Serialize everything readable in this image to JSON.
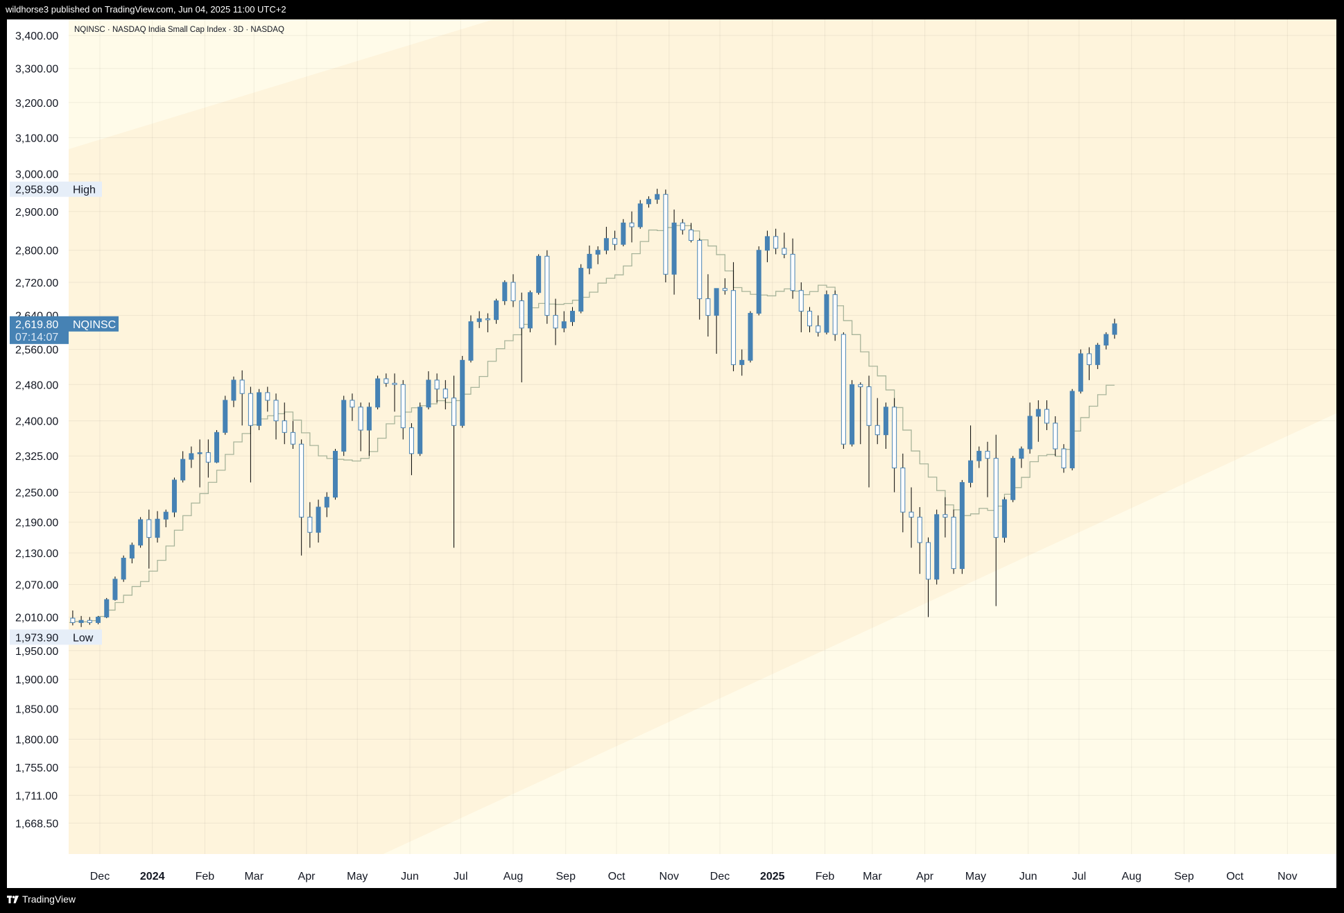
{
  "header": {
    "published": "wildhorse3 published on TradingView.com, Jun 04, 2025 11:00 UTC+2"
  },
  "footer": {
    "brand": "TradingView"
  },
  "chart_data": {
    "type": "candlestick",
    "title": "NQINSC · NASDAQ India Small Cap Index · 3D · NASDAQ",
    "symbol": "NQINSC",
    "last_price": "2,619.80",
    "countdown": "07:14:07",
    "high_label": {
      "value": "2,958.90",
      "text": "High"
    },
    "low_label": {
      "value": "1,973.90",
      "text": "Low"
    },
    "y_scale": "log",
    "ylim": [
      1643,
      3428
    ],
    "y_ticks": [
      "3,400.00",
      "3,300.00",
      "3,200.00",
      "3,100.00",
      "3,000.00",
      "2,900.00",
      "2,800.00",
      "2,720.00",
      "2,640.00",
      "2,560.00",
      "2,480.00",
      "2,400.00",
      "2,325.00",
      "2,250.00",
      "2,190.00",
      "2,130.00",
      "2,070.00",
      "2,010.00",
      "1,950.00",
      "1,900.00",
      "1,850.00",
      "1,800.00",
      "1,755.00",
      "1,711.00",
      "1,668.50"
    ],
    "x_range": [
      "2023-11-13",
      "2025-11-25"
    ],
    "x_ticks": [
      {
        "label": "Dec",
        "date": "2023-12-01",
        "year": false
      },
      {
        "label": "2024",
        "date": "2024-01-01",
        "year": true
      },
      {
        "label": "Feb",
        "date": "2024-02-01",
        "year": false
      },
      {
        "label": "Mar",
        "date": "2024-03-01",
        "year": false
      },
      {
        "label": "Apr",
        "date": "2024-04-01",
        "year": false
      },
      {
        "label": "May",
        "date": "2024-05-01",
        "year": false
      },
      {
        "label": "Jun",
        "date": "2024-06-01",
        "year": false
      },
      {
        "label": "Jul",
        "date": "2024-07-01",
        "year": false
      },
      {
        "label": "Aug",
        "date": "2024-08-01",
        "year": false
      },
      {
        "label": "Sep",
        "date": "2024-09-01",
        "year": false
      },
      {
        "label": "Oct",
        "date": "2024-10-01",
        "year": false
      },
      {
        "label": "Nov",
        "date": "2024-11-01",
        "year": false
      },
      {
        "label": "Dec",
        "date": "2024-12-01",
        "year": false
      },
      {
        "label": "2025",
        "date": "2025-01-01",
        "year": true
      },
      {
        "label": "Feb",
        "date": "2025-02-01",
        "year": false
      },
      {
        "label": "Mar",
        "date": "2025-03-01",
        "year": false
      },
      {
        "label": "Apr",
        "date": "2025-04-01",
        "year": false
      },
      {
        "label": "May",
        "date": "2025-05-01",
        "year": false
      },
      {
        "label": "Jun",
        "date": "2025-06-01",
        "year": false
      },
      {
        "label": "Jul",
        "date": "2025-07-01",
        "year": false
      },
      {
        "label": "Aug",
        "date": "2025-08-01",
        "year": false
      },
      {
        "label": "Sep",
        "date": "2025-09-01",
        "year": false
      },
      {
        "label": "Oct",
        "date": "2025-10-01",
        "year": false
      },
      {
        "label": "Nov",
        "date": "2025-11-01",
        "year": false
      }
    ],
    "grid": true,
    "colors": {
      "up": "#4682b4",
      "down_fill": "#ffffff",
      "outline": "#4682b4",
      "wick": "#000000",
      "channel": "#fef4dc",
      "outer": "#fffbe9",
      "ma": "#a8b49a",
      "label_bg": "#4682b4",
      "hl_bg": "#e6eef8"
    },
    "channel": {
      "upper": [
        [
          "2023-11-14",
          3070
        ],
        [
          "2024-07-07",
          3428
        ]
      ],
      "lower": [
        [
          "2024-06-03",
          1643
        ],
        [
          "2025-11-25",
          2408
        ]
      ]
    },
    "moving_average_note": "",
    "candles": [
      [
        "2023-11-15",
        2008,
        2022,
        1995,
        2000
      ],
      [
        "2023-11-20",
        2000,
        2012,
        1992,
        2004
      ],
      [
        "2023-11-25",
        2004,
        2010,
        1996,
        2000
      ],
      [
        "2023-11-30",
        2000,
        2012,
        1997,
        2010
      ],
      [
        "2023-12-05",
        2010,
        2045,
        2008,
        2042
      ],
      [
        "2023-12-10",
        2042,
        2085,
        2040,
        2080
      ],
      [
        "2023-12-15",
        2080,
        2125,
        2075,
        2120
      ],
      [
        "2023-12-20",
        2120,
        2150,
        2110,
        2145
      ],
      [
        "2023-12-25",
        2145,
        2200,
        2140,
        2195
      ],
      [
        "2023-12-30",
        2195,
        2215,
        2100,
        2160
      ],
      [
        "2024-01-04",
        2160,
        2212,
        2150,
        2196
      ],
      [
        "2024-01-09",
        2196,
        2215,
        2180,
        2210
      ],
      [
        "2024-01-14",
        2210,
        2280,
        2200,
        2275
      ],
      [
        "2024-01-19",
        2275,
        2335,
        2270,
        2318
      ],
      [
        "2024-01-24",
        2318,
        2345,
        2300,
        2330
      ],
      [
        "2024-01-29",
        2330,
        2360,
        2260,
        2332
      ],
      [
        "2024-02-03",
        2332,
        2360,
        2280,
        2312
      ],
      [
        "2024-02-08",
        2312,
        2380,
        2310,
        2375
      ],
      [
        "2024-02-13",
        2375,
        2455,
        2370,
        2445
      ],
      [
        "2024-02-18",
        2445,
        2498,
        2430,
        2490
      ],
      [
        "2024-02-23",
        2490,
        2512,
        2390,
        2460
      ],
      [
        "2024-02-28",
        2460,
        2475,
        2270,
        2390
      ],
      [
        "2024-03-04",
        2390,
        2470,
        2380,
        2462
      ],
      [
        "2024-03-09",
        2462,
        2475,
        2420,
        2445
      ],
      [
        "2024-03-14",
        2445,
        2460,
        2360,
        2400
      ],
      [
        "2024-03-19",
        2400,
        2440,
        2350,
        2375
      ],
      [
        "2024-03-24",
        2375,
        2400,
        2340,
        2350
      ],
      [
        "2024-03-29",
        2350,
        2360,
        2125,
        2200
      ],
      [
        "2024-04-03",
        2200,
        2230,
        2140,
        2170
      ],
      [
        "2024-04-08",
        2170,
        2235,
        2150,
        2220
      ],
      [
        "2024-04-13",
        2220,
        2250,
        2200,
        2240
      ],
      [
        "2024-04-18",
        2240,
        2340,
        2235,
        2335
      ],
      [
        "2024-04-23",
        2335,
        2455,
        2325,
        2445
      ],
      [
        "2024-04-28",
        2445,
        2460,
        2400,
        2430
      ],
      [
        "2024-05-03",
        2430,
        2440,
        2335,
        2380
      ],
      [
        "2024-05-08",
        2380,
        2440,
        2325,
        2430
      ],
      [
        "2024-05-13",
        2430,
        2500,
        2425,
        2493
      ],
      [
        "2024-05-18",
        2493,
        2505,
        2475,
        2483
      ],
      [
        "2024-05-23",
        2483,
        2505,
        2420,
        2480
      ],
      [
        "2024-05-28",
        2480,
        2490,
        2360,
        2385
      ],
      [
        "2024-06-02",
        2385,
        2395,
        2285,
        2330
      ],
      [
        "2024-06-07",
        2330,
        2440,
        2325,
        2430
      ],
      [
        "2024-06-12",
        2430,
        2510,
        2425,
        2490
      ],
      [
        "2024-06-17",
        2490,
        2505,
        2440,
        2470
      ],
      [
        "2024-06-22",
        2470,
        2490,
        2425,
        2450
      ],
      [
        "2024-06-27",
        2450,
        2500,
        2140,
        2390
      ],
      [
        "2024-07-02",
        2390,
        2545,
        2385,
        2535
      ],
      [
        "2024-07-07",
        2535,
        2640,
        2530,
        2625
      ],
      [
        "2024-07-12",
        2625,
        2650,
        2610,
        2632
      ],
      [
        "2024-07-17",
        2632,
        2645,
        2600,
        2630
      ],
      [
        "2024-07-22",
        2630,
        2680,
        2620,
        2675
      ],
      [
        "2024-07-27",
        2675,
        2725,
        2665,
        2720
      ],
      [
        "2024-08-01",
        2720,
        2740,
        2660,
        2675
      ],
      [
        "2024-08-06",
        2675,
        2695,
        2485,
        2610
      ],
      [
        "2024-08-11",
        2610,
        2700,
        2600,
        2695
      ],
      [
        "2024-08-16",
        2695,
        2790,
        2690,
        2785
      ],
      [
        "2024-08-21",
        2785,
        2800,
        2620,
        2640
      ],
      [
        "2024-08-26",
        2640,
        2680,
        2570,
        2610
      ],
      [
        "2024-08-31",
        2610,
        2650,
        2600,
        2625
      ],
      [
        "2024-09-05",
        2625,
        2660,
        2615,
        2650
      ],
      [
        "2024-09-10",
        2650,
        2765,
        2645,
        2755
      ],
      [
        "2024-09-15",
        2755,
        2812,
        2740,
        2790
      ],
      [
        "2024-09-20",
        2790,
        2810,
        2765,
        2800
      ],
      [
        "2024-09-25",
        2800,
        2860,
        2790,
        2830
      ],
      [
        "2024-09-30",
        2830,
        2850,
        2800,
        2815
      ],
      [
        "2024-10-05",
        2815,
        2880,
        2810,
        2870
      ],
      [
        "2024-10-10",
        2870,
        2900,
        2820,
        2860
      ],
      [
        "2024-10-15",
        2860,
        2930,
        2855,
        2920
      ],
      [
        "2024-10-20",
        2920,
        2940,
        2910,
        2932
      ],
      [
        "2024-10-25",
        2932,
        2960,
        2920,
        2945
      ],
      [
        "2024-10-30",
        2945,
        2958,
        2720,
        2740
      ],
      [
        "2024-11-04",
        2740,
        2905,
        2690,
        2870
      ],
      [
        "2024-11-09",
        2870,
        2880,
        2840,
        2852
      ],
      [
        "2024-11-14",
        2852,
        2870,
        2820,
        2825
      ],
      [
        "2024-11-19",
        2825,
        2830,
        2630,
        2680
      ],
      [
        "2024-11-24",
        2680,
        2740,
        2590,
        2640
      ],
      [
        "2024-11-29",
        2640,
        2700,
        2550,
        2705
      ],
      [
        "2024-12-04",
        2705,
        2730,
        2690,
        2700
      ],
      [
        "2024-12-09",
        2700,
        2770,
        2510,
        2525
      ],
      [
        "2024-12-14",
        2525,
        2560,
        2500,
        2535
      ],
      [
        "2024-12-19",
        2535,
        2650,
        2530,
        2645
      ],
      [
        "2024-12-24",
        2645,
        2810,
        2640,
        2800
      ],
      [
        "2024-12-29",
        2800,
        2850,
        2770,
        2835
      ],
      [
        "2025-01-03",
        2835,
        2855,
        2790,
        2805
      ],
      [
        "2025-01-08",
        2805,
        2845,
        2780,
        2790
      ],
      [
        "2025-01-13",
        2790,
        2830,
        2680,
        2700
      ],
      [
        "2025-01-18",
        2700,
        2720,
        2600,
        2650
      ],
      [
        "2025-01-23",
        2650,
        2660,
        2600,
        2615
      ],
      [
        "2025-01-28",
        2615,
        2640,
        2590,
        2600
      ],
      [
        "2025-02-02",
        2600,
        2700,
        2595,
        2690
      ],
      [
        "2025-02-07",
        2690,
        2700,
        2580,
        2595
      ],
      [
        "2025-02-12",
        2595,
        2600,
        2340,
        2350
      ],
      [
        "2025-02-17",
        2350,
        2490,
        2345,
        2480
      ],
      [
        "2025-02-22",
        2480,
        2485,
        2350,
        2475
      ],
      [
        "2025-02-27",
        2475,
        2500,
        2260,
        2390
      ],
      [
        "2025-03-04",
        2390,
        2450,
        2350,
        2370
      ],
      [
        "2025-03-09",
        2370,
        2440,
        2340,
        2430
      ],
      [
        "2025-03-14",
        2430,
        2450,
        2250,
        2300
      ],
      [
        "2025-03-19",
        2300,
        2330,
        2170,
        2210
      ],
      [
        "2025-03-24",
        2210,
        2260,
        2140,
        2200
      ],
      [
        "2025-03-29",
        2200,
        2220,
        2090,
        2150
      ],
      [
        "2025-04-03",
        2150,
        2160,
        2010,
        2080
      ],
      [
        "2025-04-08",
        2080,
        2215,
        2070,
        2205
      ],
      [
        "2025-04-13",
        2205,
        2240,
        2160,
        2200
      ],
      [
        "2025-04-18",
        2200,
        2215,
        2090,
        2100
      ],
      [
        "2025-04-23",
        2100,
        2275,
        2090,
        2270
      ],
      [
        "2025-04-28",
        2270,
        2390,
        2260,
        2315
      ],
      [
        "2025-05-03",
        2315,
        2345,
        2300,
        2335
      ],
      [
        "2025-05-08",
        2335,
        2355,
        2240,
        2320
      ],
      [
        "2025-05-13",
        2320,
        2370,
        2030,
        2160
      ],
      [
        "2025-05-18",
        2160,
        2240,
        2150,
        2235
      ],
      [
        "2025-05-23",
        2235,
        2325,
        2230,
        2320
      ],
      [
        "2025-05-28",
        2320,
        2345,
        2300,
        2340
      ],
      [
        "2025-06-02",
        2340,
        2440,
        2330,
        2410
      ],
      [
        "2025-06-07",
        2410,
        2445,
        2355,
        2425
      ],
      [
        "2025-06-12",
        2425,
        2445,
        2380,
        2395
      ],
      [
        "2025-06-17",
        2395,
        2410,
        2325,
        2340
      ],
      [
        "2025-06-22",
        2340,
        2350,
        2290,
        2300
      ],
      [
        "2025-06-27",
        2300,
        2470,
        2295,
        2465
      ],
      [
        "2025-07-02",
        2465,
        2560,
        2460,
        2550
      ],
      [
        "2025-07-07",
        2550,
        2565,
        2490,
        2525
      ],
      [
        "2025-07-12",
        2525,
        2575,
        2515,
        2570
      ],
      [
        "2025-07-17",
        2570,
        2600,
        2560,
        2595
      ],
      [
        "2025-07-22",
        2595,
        2632,
        2585,
        2620
      ]
    ]
  }
}
